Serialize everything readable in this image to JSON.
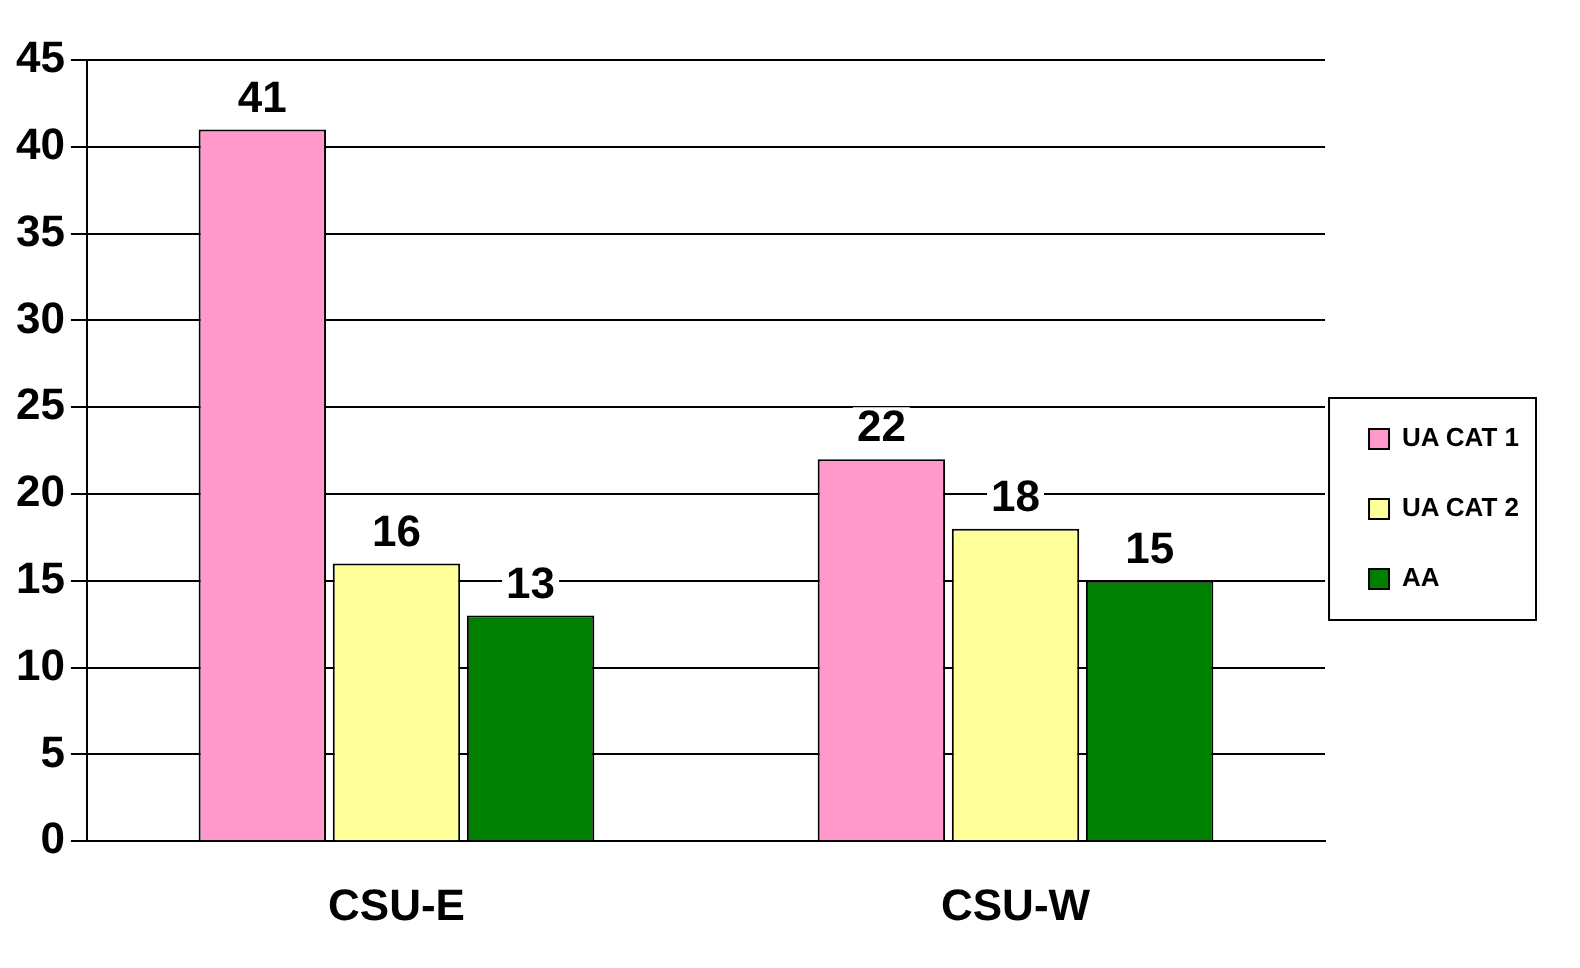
{
  "chart_data": {
    "type": "bar",
    "categories": [
      "CSU-E",
      "CSU-W"
    ],
    "series": [
      {
        "name": "UA CAT 1",
        "color": "#ff99cc",
        "values": [
          41,
          22
        ]
      },
      {
        "name": "UA CAT 2",
        "color": "#ffff99",
        "values": [
          16,
          18
        ]
      },
      {
        "name": "AA",
        "color": "#008000",
        "values": [
          13,
          15
        ]
      }
    ],
    "ylim": [
      0,
      45
    ],
    "yticks": [
      0,
      5,
      10,
      15,
      20,
      25,
      30,
      35,
      40,
      45
    ],
    "grid": "y",
    "legend": "right",
    "data_labels": true
  }
}
